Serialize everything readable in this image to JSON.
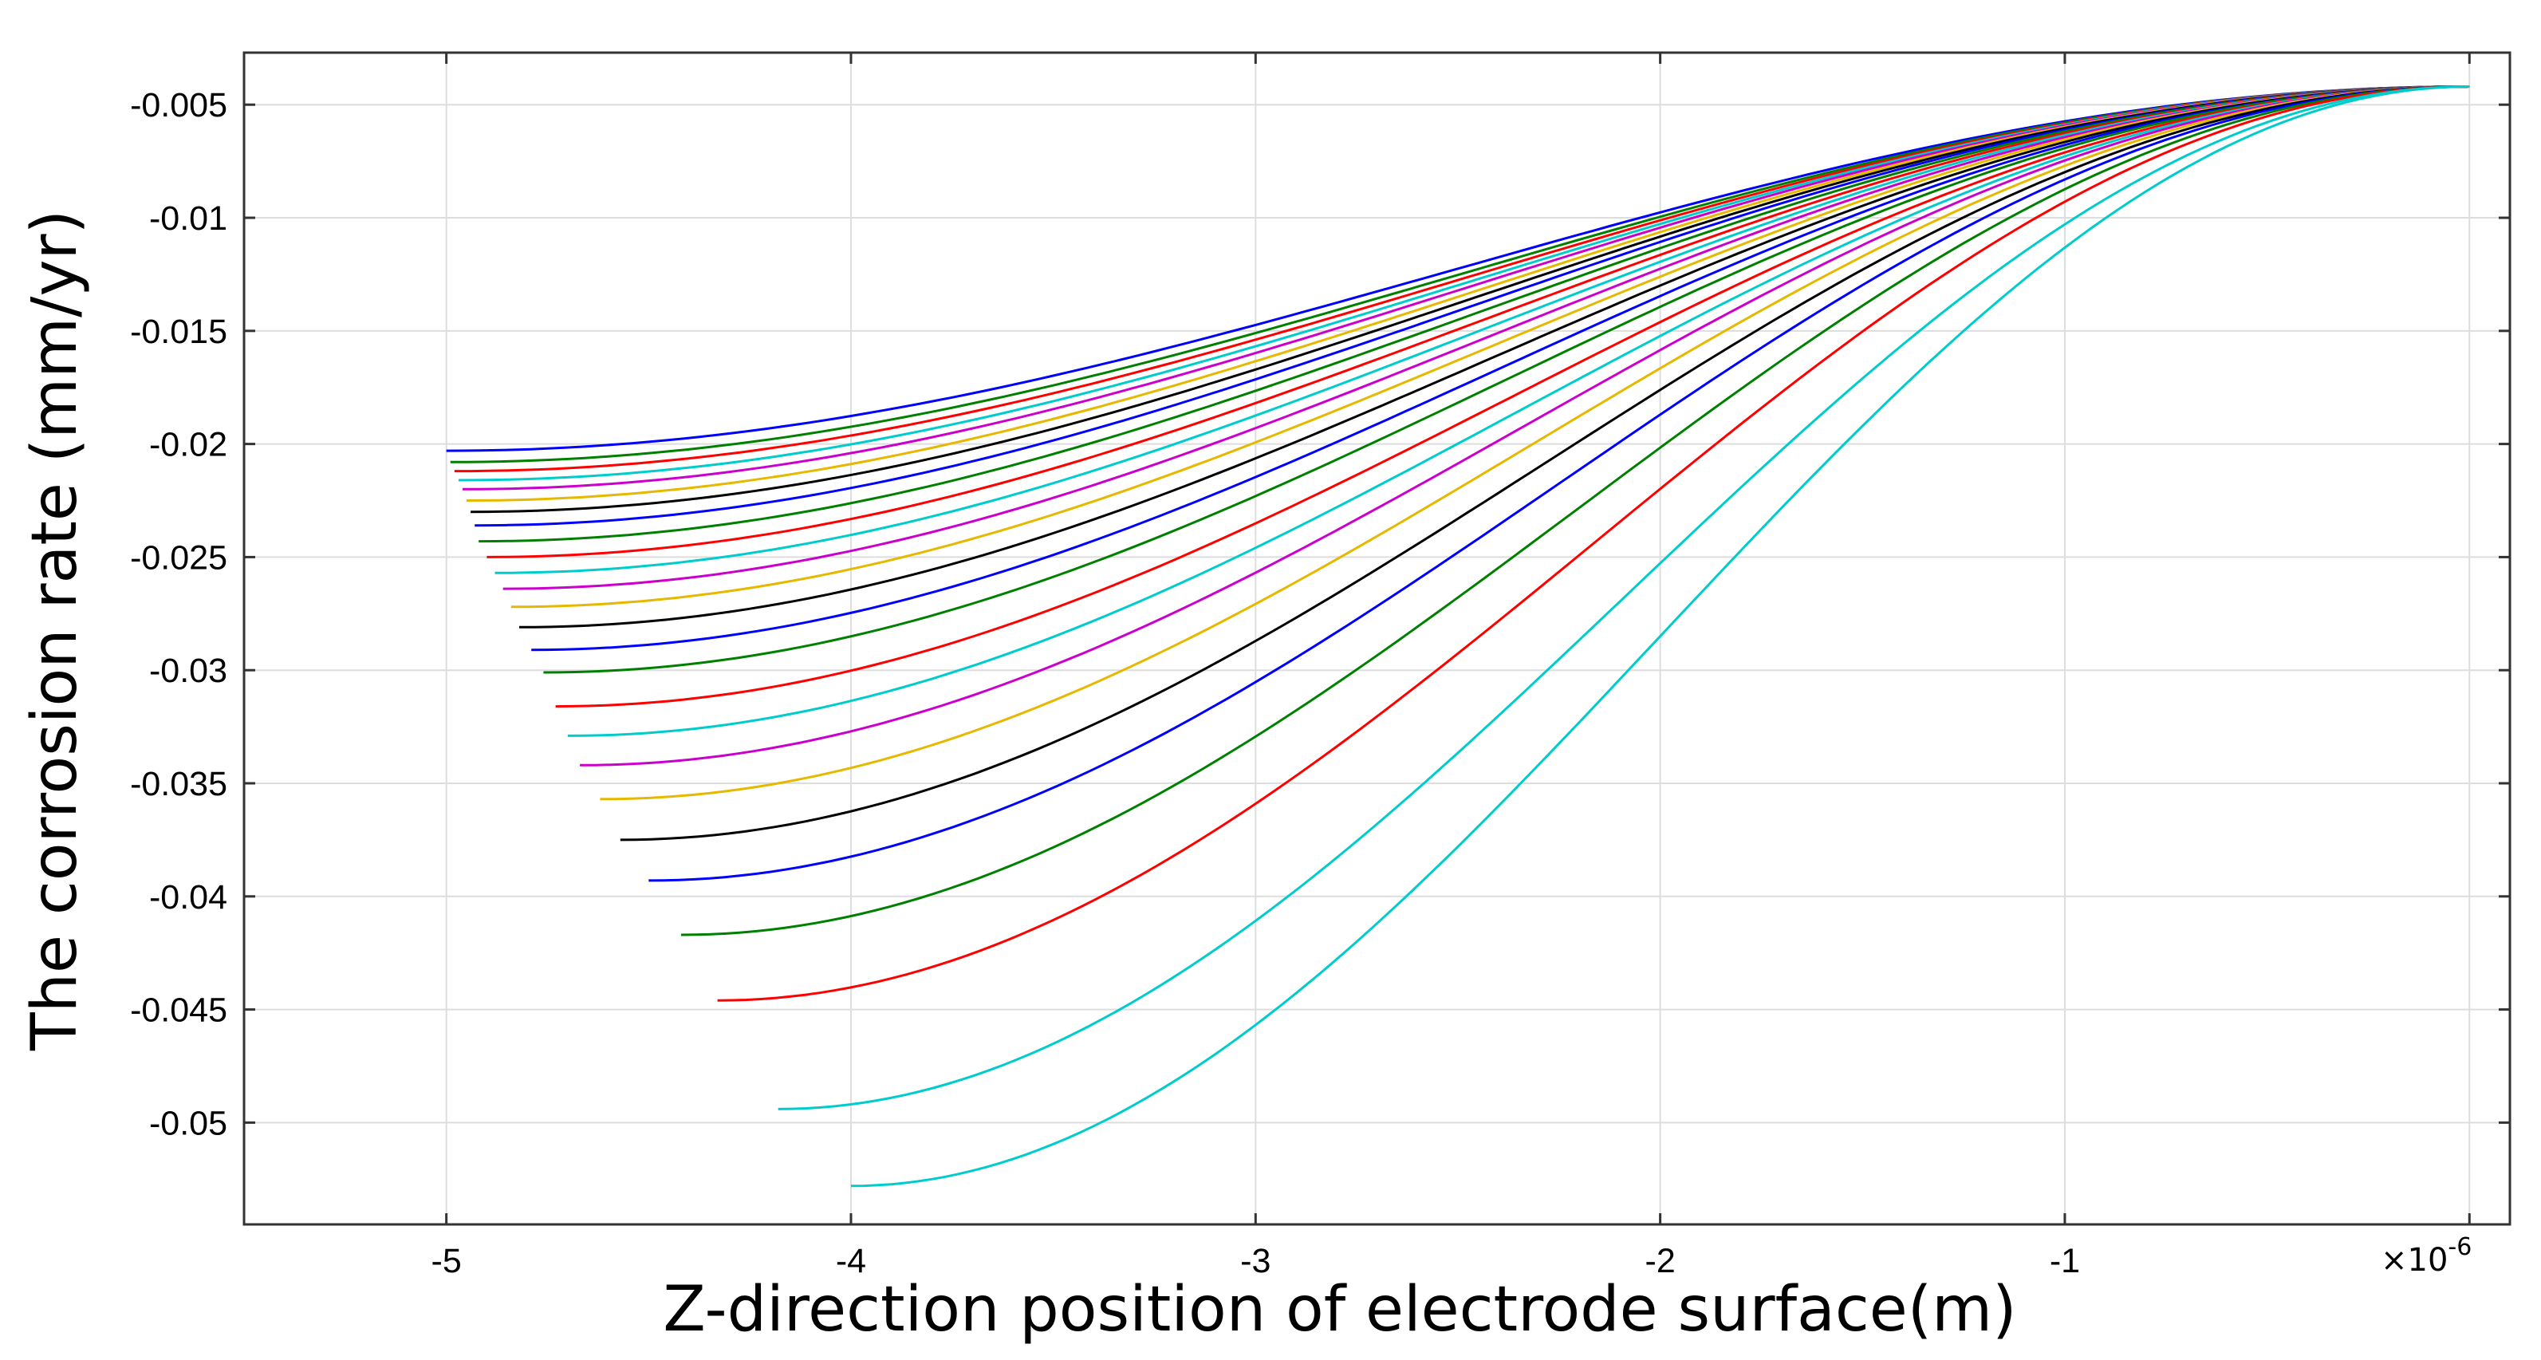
{
  "chart_data": {
    "type": "line",
    "title": "",
    "xlabel": "Z-direction position of electrode surface(m)",
    "ylabel": "The corrosion rate  (mm/yr)",
    "x_multiplier_label": "×10",
    "x_multiplier_exponent": "-6",
    "xlim": [
      -5.5,
      0.1
    ],
    "ylim": [
      -0.0545,
      -0.0027
    ],
    "x_ticks": [
      -5,
      -4,
      -3,
      -2,
      -1
    ],
    "x_tick_labels": [
      "-5",
      "-4",
      "-3",
      "-2",
      "-1"
    ],
    "y_ticks": [
      -0.005,
      -0.01,
      -0.015,
      -0.02,
      -0.025,
      -0.03,
      -0.035,
      -0.04,
      -0.045,
      -0.05
    ],
    "y_tick_labels": [
      "-0.005",
      "-0.01",
      "-0.015",
      "-0.02",
      "-0.025",
      "-0.03",
      "-0.035",
      "-0.04",
      "-0.045",
      "-0.05"
    ],
    "grid": true,
    "legend": "none",
    "x_end": 0.0,
    "y_end": -0.0042,
    "colors": [
      "#0000ff",
      "#008000",
      "#ff0000",
      "#00cccc",
      "#cc00cc",
      "#e6b800",
      "#000000"
    ],
    "series": [
      {
        "x_start": -5.0,
        "y_start": -0.0203,
        "color": "#0000ff"
      },
      {
        "x_start": -4.99,
        "y_start": -0.0208,
        "color": "#008000"
      },
      {
        "x_start": -4.98,
        "y_start": -0.0212,
        "color": "#ff0000"
      },
      {
        "x_start": -4.97,
        "y_start": -0.0216,
        "color": "#00cccc"
      },
      {
        "x_start": -4.96,
        "y_start": -0.022,
        "color": "#cc00cc"
      },
      {
        "x_start": -4.95,
        "y_start": -0.0225,
        "color": "#e6b800"
      },
      {
        "x_start": -4.94,
        "y_start": -0.023,
        "color": "#000000"
      },
      {
        "x_start": -4.93,
        "y_start": -0.0236,
        "color": "#0000ff"
      },
      {
        "x_start": -4.92,
        "y_start": -0.0243,
        "color": "#008000"
      },
      {
        "x_start": -4.9,
        "y_start": -0.025,
        "color": "#ff0000"
      },
      {
        "x_start": -4.88,
        "y_start": -0.0257,
        "color": "#00cccc"
      },
      {
        "x_start": -4.86,
        "y_start": -0.0264,
        "color": "#cc00cc"
      },
      {
        "x_start": -4.84,
        "y_start": -0.0272,
        "color": "#e6b800"
      },
      {
        "x_start": -4.82,
        "y_start": -0.0281,
        "color": "#000000"
      },
      {
        "x_start": -4.79,
        "y_start": -0.0291,
        "color": "#0000ff"
      },
      {
        "x_start": -4.76,
        "y_start": -0.0301,
        "color": "#008000"
      },
      {
        "x_start": -4.73,
        "y_start": -0.0316,
        "color": "#ff0000"
      },
      {
        "x_start": -4.7,
        "y_start": -0.0329,
        "color": "#00cccc"
      },
      {
        "x_start": -4.67,
        "y_start": -0.0342,
        "color": "#cc00cc"
      },
      {
        "x_start": -4.62,
        "y_start": -0.0357,
        "color": "#e6b800"
      },
      {
        "x_start": -4.57,
        "y_start": -0.0375,
        "color": "#000000"
      },
      {
        "x_start": -4.5,
        "y_start": -0.0393,
        "color": "#0000ff"
      },
      {
        "x_start": -4.42,
        "y_start": -0.0417,
        "color": "#008000"
      },
      {
        "x_start": -4.33,
        "y_start": -0.0446,
        "color": "#ff0000"
      },
      {
        "x_start": -4.18,
        "y_start": -0.0494,
        "color": "#00cccc"
      },
      {
        "x_start": -4.0,
        "y_start": -0.0528,
        "color": "#00cccc"
      }
    ]
  }
}
